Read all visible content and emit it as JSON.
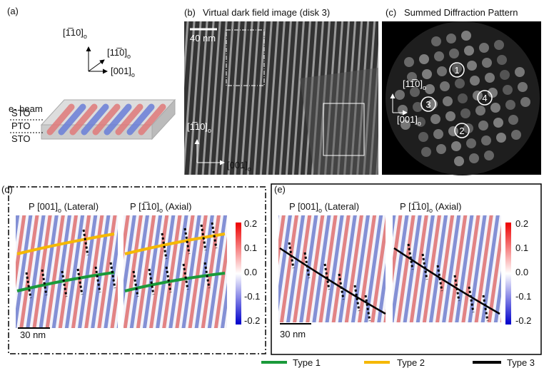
{
  "panel_a": {
    "label": "(a)",
    "directions": [
      {
        "index": "[1̅10]",
        "sub": "o"
      },
      {
        "index": "[11̅0]",
        "sub": "o"
      },
      {
        "index": "[001]",
        "sub": "o"
      }
    ],
    "beam": "e- beam",
    "layers": [
      "STO",
      "PTO",
      "STO"
    ]
  },
  "panel_b": {
    "label": "(b)",
    "title": "Virtual dark field image (disk 3)",
    "scale": "40 nm",
    "directions": [
      {
        "index": "[1̅10]",
        "sub": "o"
      },
      {
        "index": "[001]",
        "sub": "o"
      }
    ]
  },
  "panel_c": {
    "label": "(c)",
    "title": "Summed Diffraction Pattern",
    "disks": [
      "1",
      "2",
      "3",
      "4"
    ],
    "directions": [
      {
        "index": "[11̅0]",
        "sub": "o"
      },
      {
        "index": "[001]",
        "sub": "o"
      }
    ]
  },
  "panel_d": {
    "label": "(d)",
    "maps": [
      {
        "prefix": "P ",
        "index": "[001]",
        "sub": "o",
        "suffix": " (Lateral)"
      },
      {
        "prefix": "P ",
        "index": "[1̅10]",
        "sub": "o",
        "suffix": " (Axial)"
      }
    ],
    "colorbar": [
      "0.2",
      "0.1",
      "0.0",
      "-0.1",
      "-0.2"
    ],
    "scale": "30 nm"
  },
  "panel_e": {
    "label": "(e)",
    "maps": [
      {
        "prefix": "P ",
        "index": "[001]",
        "sub": "o",
        "suffix": " (Lateral)"
      },
      {
        "prefix": "P ",
        "index": "[1̅10]",
        "sub": "o",
        "suffix": " (Axial)"
      }
    ],
    "colorbar": [
      "0.2",
      "0.1",
      "0.0",
      "-0.1",
      "-0.2"
    ],
    "scale": "30 nm"
  },
  "legend": [
    "Type 1",
    "Type 2",
    "Type 3"
  ]
}
